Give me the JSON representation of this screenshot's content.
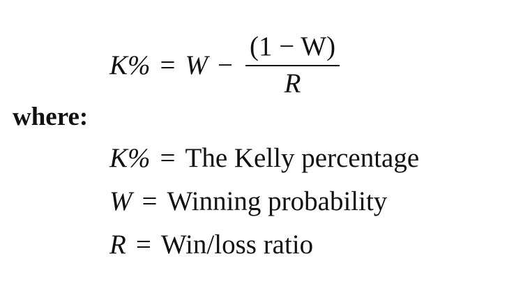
{
  "formula": {
    "lhs": "K%",
    "relation": "=",
    "term": "W",
    "operator": "−",
    "numerator": "(1 − W)",
    "denominator": "R"
  },
  "where_label": "where:",
  "definitions": [
    {
      "symbol": "K%",
      "relation": "=",
      "meaning": "The Kelly percentage"
    },
    {
      "symbol": "W",
      "relation": "=",
      "meaning": "Winning probability"
    },
    {
      "symbol": "R",
      "relation": "=",
      "meaning": "Win/loss ratio"
    }
  ]
}
